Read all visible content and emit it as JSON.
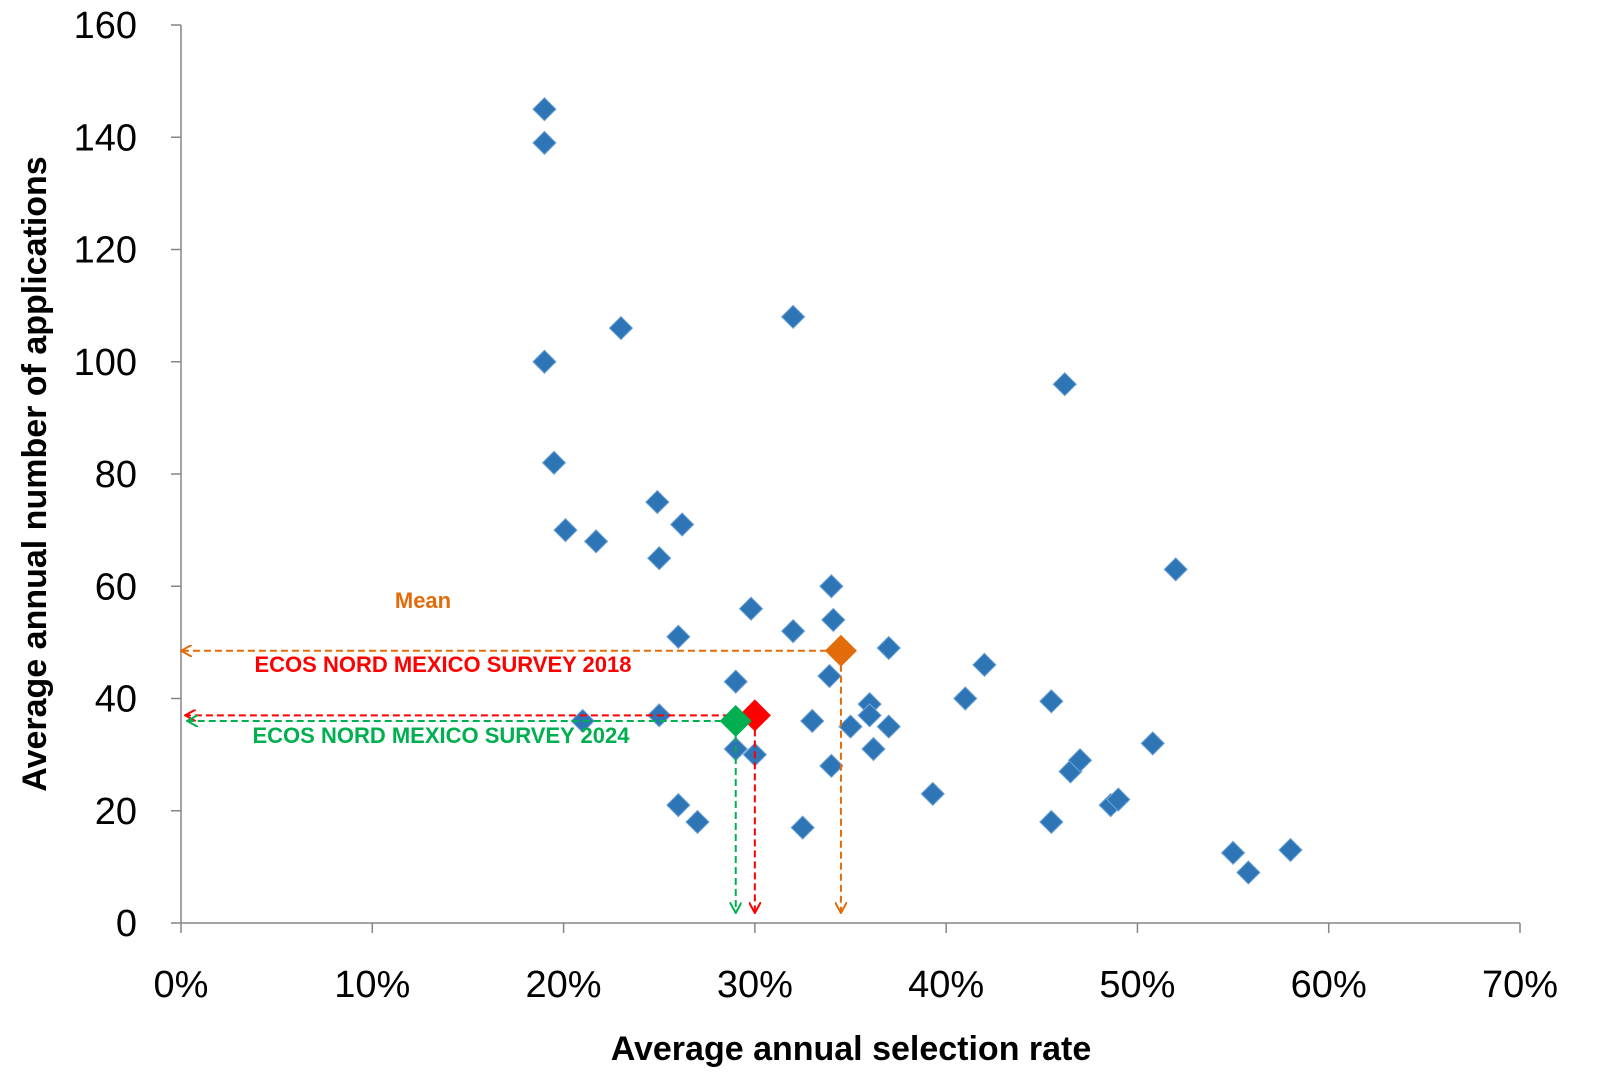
{
  "chart_data": {
    "type": "scatter",
    "title": "",
    "xlabel": "Average annual selection rate",
    "ylabel": "Average annual number of applications",
    "xlim": [
      0,
      0.7
    ],
    "ylim": [
      0,
      160
    ],
    "x_ticks": [
      0,
      0.1,
      0.2,
      0.3,
      0.4,
      0.5,
      0.6,
      0.7
    ],
    "x_tick_labels": [
      "0%",
      "10%",
      "20%",
      "30%",
      "40%",
      "50%",
      "60%",
      "70%"
    ],
    "y_ticks": [
      0,
      20,
      40,
      60,
      80,
      100,
      120,
      140,
      160
    ],
    "y_tick_labels": [
      "0",
      "20",
      "40",
      "60",
      "80",
      "100",
      "120",
      "140",
      "160"
    ],
    "grid": false,
    "marker": "diamond",
    "series": [
      {
        "color": "#2E75B6",
        "points": [
          {
            "x": 0.19,
            "y": 145
          },
          {
            "x": 0.19,
            "y": 139
          },
          {
            "x": 0.19,
            "y": 100
          },
          {
            "x": 0.195,
            "y": 82
          },
          {
            "x": 0.201,
            "y": 70
          },
          {
            "x": 0.217,
            "y": 68
          },
          {
            "x": 0.23,
            "y": 106
          },
          {
            "x": 0.249,
            "y": 75
          },
          {
            "x": 0.25,
            "y": 65
          },
          {
            "x": 0.262,
            "y": 71
          },
          {
            "x": 0.26,
            "y": 51
          },
          {
            "x": 0.21,
            "y": 36
          },
          {
            "x": 0.25,
            "y": 37
          },
          {
            "x": 0.26,
            "y": 21
          },
          {
            "x": 0.27,
            "y": 18
          },
          {
            "x": 0.29,
            "y": 43
          },
          {
            "x": 0.29,
            "y": 31
          },
          {
            "x": 0.298,
            "y": 56
          },
          {
            "x": 0.3,
            "y": 30
          },
          {
            "x": 0.32,
            "y": 108
          },
          {
            "x": 0.32,
            "y": 52
          },
          {
            "x": 0.325,
            "y": 17
          },
          {
            "x": 0.33,
            "y": 36
          },
          {
            "x": 0.34,
            "y": 60
          },
          {
            "x": 0.341,
            "y": 54
          },
          {
            "x": 0.339,
            "y": 44
          },
          {
            "x": 0.34,
            "y": 28
          },
          {
            "x": 0.35,
            "y": 35
          },
          {
            "x": 0.36,
            "y": 39
          },
          {
            "x": 0.36,
            "y": 37
          },
          {
            "x": 0.362,
            "y": 31
          },
          {
            "x": 0.37,
            "y": 49
          },
          {
            "x": 0.37,
            "y": 35
          },
          {
            "x": 0.393,
            "y": 23
          },
          {
            "x": 0.41,
            "y": 40
          },
          {
            "x": 0.42,
            "y": 46
          },
          {
            "x": 0.455,
            "y": 39.5
          },
          {
            "x": 0.455,
            "y": 18
          },
          {
            "x": 0.462,
            "y": 96
          },
          {
            "x": 0.465,
            "y": 27
          },
          {
            "x": 0.47,
            "y": 29
          },
          {
            "x": 0.486,
            "y": 21
          },
          {
            "x": 0.49,
            "y": 22
          },
          {
            "x": 0.508,
            "y": 32
          },
          {
            "x": 0.52,
            "y": 63
          },
          {
            "x": 0.55,
            "y": 12.5
          },
          {
            "x": 0.558,
            "y": 9
          },
          {
            "x": 0.58,
            "y": 13
          }
        ]
      }
    ],
    "highlights": [
      {
        "label": "Mean",
        "x": 0.345,
        "y": 48.5,
        "color": "#E36C0A"
      },
      {
        "label": "ECOS NORD MEXICO SURVEY 2018",
        "x": 0.3,
        "y": 37,
        "color": "#FF0000"
      },
      {
        "label": "ECOS NORD MEXICO SURVEY 2024",
        "x": 0.29,
        "y": 36,
        "color": "#00B050"
      }
    ]
  }
}
